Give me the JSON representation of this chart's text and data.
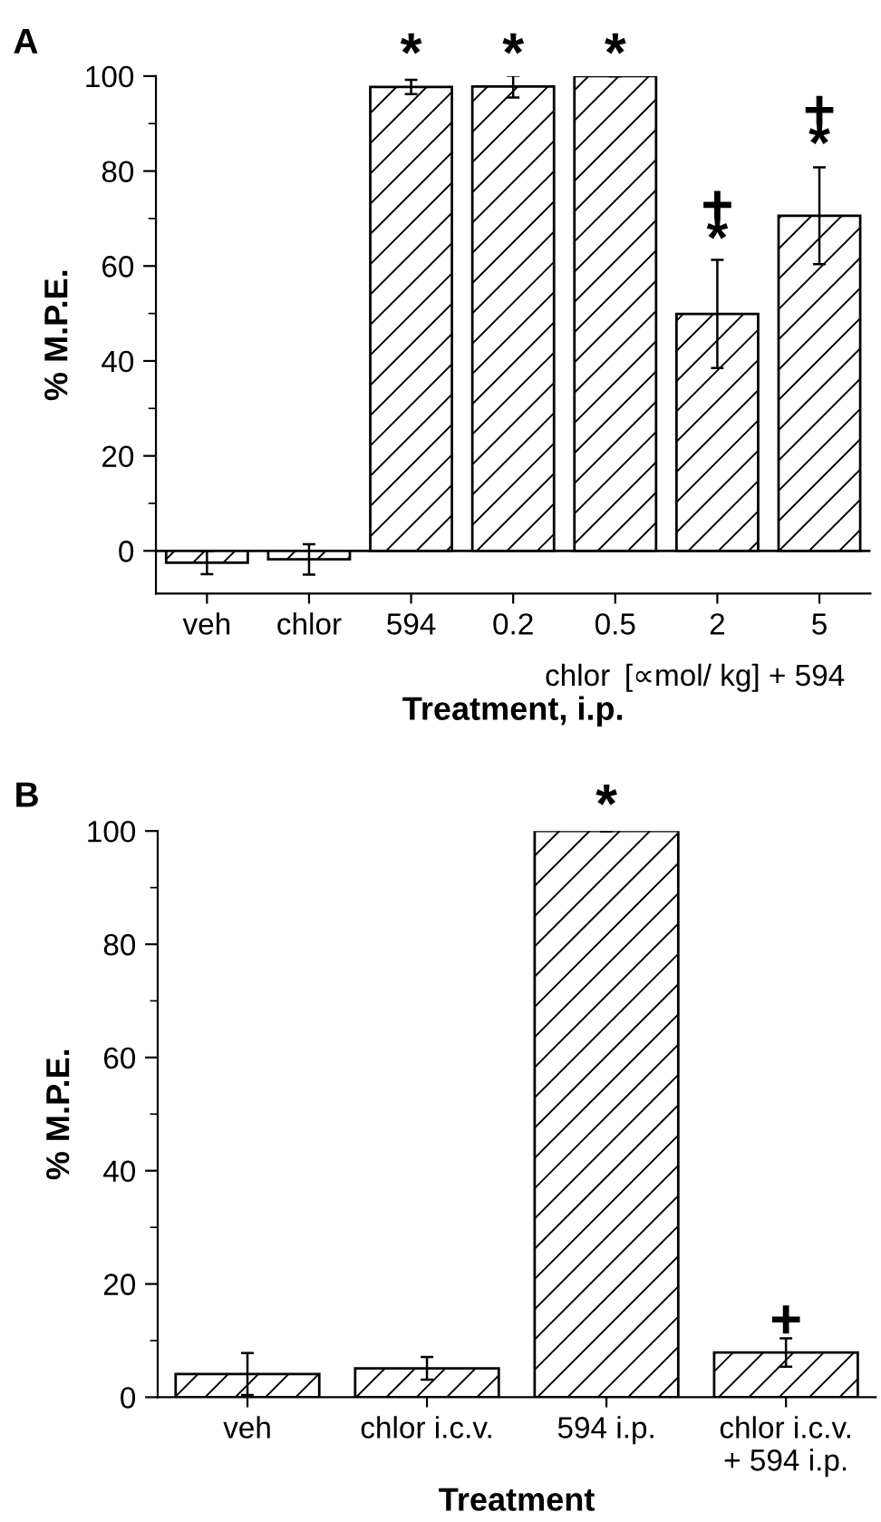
{
  "chart_data": [
    {
      "type": "bar",
      "title": "A",
      "xlabel": "Treatment, i.p.",
      "ylabel": "% M.P.E.",
      "categories": [
        "veh",
        "chlor",
        "594",
        "0.2",
        "0.5",
        "2",
        "5"
      ],
      "values": [
        -2.5,
        -1.8,
        97.7,
        97.8,
        100,
        49.9,
        70.6
      ],
      "errors": [
        2.4,
        3.2,
        1.5,
        2.3,
        null,
        11.4,
        10.2
      ],
      "color": "#000000",
      "ylim": [
        -9,
        100
      ],
      "yticks": [
        0,
        20,
        40,
        60,
        80,
        100
      ],
      "ref_lines": [
        {
          "axis": "y",
          "value": 0
        }
      ],
      "annotations": [
        "*",
        "*",
        "*",
        "*",
        "+",
        "*",
        "+",
        "chlor",
        "[∝mol/ kg] + 594"
      ]
    },
    {
      "type": "bar",
      "title": "B",
      "xlabel": "Treatment",
      "ylabel": "% M.P.E.",
      "categories": [
        "veh",
        "chlor i.c.v.",
        "594 i.p.",
        "chlor i.c.v.\n+ 594 i.p."
      ],
      "values": [
        4.1,
        5.1,
        100,
        7.9
      ],
      "errors": [
        3.7,
        2.0,
        null,
        2.5
      ],
      "color": "#000000",
      "ylim": [
        0,
        100
      ],
      "yticks": [
        0,
        20,
        40,
        60,
        80,
        100
      ],
      "annotations": [
        "*",
        "+"
      ]
    }
  ]
}
